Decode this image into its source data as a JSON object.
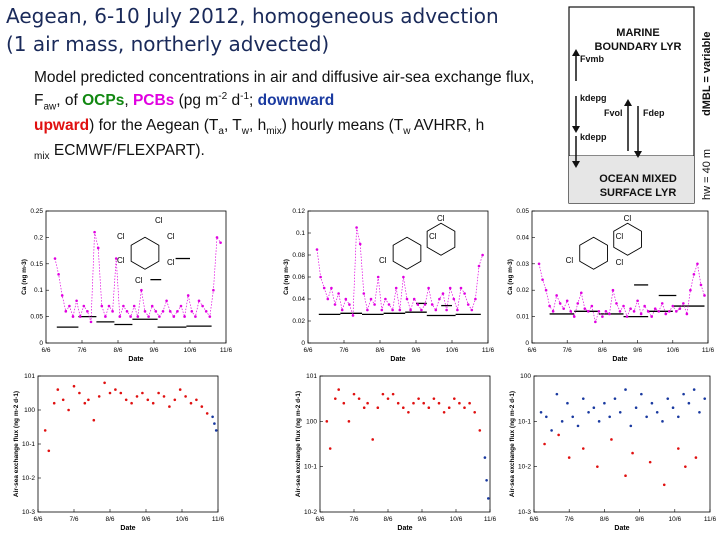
{
  "header": {
    "title_line1": "Aegean, 6-10 July 2012, homogeneous advection",
    "title_line2": "(1 air mass, northerly advected)"
  },
  "caption": {
    "part1": "Model predicted concentrations in air and diffusive air-sea exchange flux, F",
    "aw_sub": "aw",
    "part2": ", of ",
    "ocps": "OCPs",
    "comma": ", ",
    "pcbs": "PCBs",
    "part3": " (pg m",
    "sup1": "-2",
    "part4": " d",
    "sup2": "-1",
    "part5": "; ",
    "downward": "downward",
    "upward": "upward",
    "part6": ") for the Aegean (T",
    "a_sub": "a",
    "part7": ", T",
    "w_sub": "w",
    "part8": ", h",
    "mix_sub": "mix",
    "part9": ") hourly means (T",
    "w_sub2": "w",
    "part10": " AVHRR, h",
    "mix_sub2": "mix",
    "part11": " ECMWF/FLEXPART)."
  },
  "diagram": {
    "mbl_line1": "MARINE",
    "mbl_line2": "BOUNDARY LYR",
    "oml_line1": "OCEAN MIXED",
    "oml_line2": "SURFACE LYR",
    "dmbl": "dMBL = variable",
    "hw": "hw = 40 m",
    "f_vmb": "Fvmb",
    "k_depg": "kdepg",
    "f_vol": "Fvol",
    "f_dep": "Fdep",
    "k_depp": "kdepp",
    "colors": {
      "dark": "#111111"
    }
  },
  "colors": {
    "pcb": "#e000e0",
    "downward": "#1a3aa0",
    "upward": "#e01010",
    "ocp": "#118811"
  },
  "chart_data": [
    {
      "type": "scatter",
      "panel": "top-left",
      "ylabel": "Ca (ng m-3)",
      "xlabel": "Date",
      "xticks": [
        "6/6",
        "7/6",
        "8/6",
        "9/6",
        "10/6",
        "11/6"
      ],
      "yticks": [
        "0",
        "0.05",
        "0.1",
        "0.15",
        "0.2",
        "0.25"
      ],
      "ylim": [
        0,
        0.25
      ],
      "xlim": [
        0,
        5
      ],
      "molecule_labels": [
        "Cl",
        "Cl",
        "Cl",
        "Cl",
        "Cl",
        "Cl"
      ],
      "series": [
        {
          "color": "#e000e0",
          "x": [
            0.25,
            0.35,
            0.45,
            0.55,
            0.65,
            0.75,
            0.85,
            0.95,
            1.05,
            1.15,
            1.25,
            1.35,
            1.45,
            1.55,
            1.65,
            1.75,
            1.85,
            1.95,
            2.05,
            2.15,
            2.25,
            2.35,
            2.45,
            2.55,
            2.65,
            2.75,
            2.85,
            2.95,
            3.05,
            3.15,
            3.25,
            3.35,
            3.45,
            3.55,
            3.65,
            3.75,
            3.85,
            3.95,
            4.05,
            4.15,
            4.25,
            4.35,
            4.45,
            4.55,
            4.65,
            4.75,
            4.85
          ],
          "y": [
            0.16,
            0.13,
            0.09,
            0.06,
            0.07,
            0.05,
            0.08,
            0.05,
            0.07,
            0.06,
            0.04,
            0.21,
            0.18,
            0.07,
            0.05,
            0.07,
            0.06,
            0.16,
            0.05,
            0.07,
            0.06,
            0.05,
            0.07,
            0.05,
            0.1,
            0.06,
            0.05,
            0.07,
            0.06,
            0.05,
            0.06,
            0.08,
            0.06,
            0.05,
            0.06,
            0.07,
            0.05,
            0.09,
            0.06,
            0.05,
            0.08,
            0.07,
            0.06,
            0.05,
            0.1,
            0.2,
            0.19
          ]
        }
      ],
      "segments": [
        {
          "x": [
            0.3,
            0.9
          ],
          "y": 0.03
        },
        {
          "x": [
            0.9,
            1.4
          ],
          "y": 0.05
        },
        {
          "x": [
            1.4,
            1.9
          ],
          "y": 0.04
        },
        {
          "x": [
            1.9,
            2.4
          ],
          "y": 0.035
        },
        {
          "x": [
            2.4,
            3.1
          ],
          "y": 0.045
        },
        {
          "x": [
            3.1,
            3.9
          ],
          "y": 0.03
        },
        {
          "x": [
            3.9,
            4.6
          ],
          "y": 0.032
        },
        {
          "x": [
            3.6,
            4.0
          ],
          "y": 0.16
        },
        {
          "x": [
            2.9,
            3.2
          ],
          "y": 0.12
        }
      ]
    },
    {
      "type": "scatter",
      "panel": "top-middle",
      "ylabel": "Ca (ng m-3)",
      "xlabel": "Date",
      "xticks": [
        "6/6",
        "7/6",
        "8/6",
        "9/6",
        "10/6",
        "11/6"
      ],
      "yticks": [
        "0",
        "0.02",
        "0.04",
        "0.06",
        "0.08",
        "0.1",
        "0.12"
      ],
      "ylim": [
        0,
        0.12
      ],
      "xlim": [
        0,
        5
      ],
      "molecule_labels": [
        "Cl",
        "Cl",
        "Cl"
      ],
      "series": [
        {
          "color": "#e000e0",
          "x": [
            0.25,
            0.35,
            0.45,
            0.55,
            0.65,
            0.75,
            0.85,
            0.95,
            1.05,
            1.15,
            1.25,
            1.35,
            1.45,
            1.55,
            1.65,
            1.75,
            1.85,
            1.95,
            2.05,
            2.15,
            2.25,
            2.35,
            2.45,
            2.55,
            2.65,
            2.75,
            2.85,
            2.95,
            3.05,
            3.15,
            3.25,
            3.35,
            3.45,
            3.55,
            3.65,
            3.75,
            3.85,
            3.95,
            4.05,
            4.15,
            4.25,
            4.35,
            4.45,
            4.55,
            4.65,
            4.75,
            4.85
          ],
          "y": [
            0.085,
            0.06,
            0.05,
            0.04,
            0.05,
            0.035,
            0.045,
            0.03,
            0.04,
            0.035,
            0.025,
            0.105,
            0.09,
            0.045,
            0.03,
            0.04,
            0.035,
            0.06,
            0.03,
            0.04,
            0.035,
            0.03,
            0.05,
            0.03,
            0.06,
            0.04,
            0.03,
            0.04,
            0.035,
            0.03,
            0.035,
            0.05,
            0.035,
            0.03,
            0.04,
            0.045,
            0.03,
            0.05,
            0.04,
            0.03,
            0.05,
            0.045,
            0.035,
            0.03,
            0.04,
            0.07,
            0.08
          ]
        }
      ],
      "segments": [
        {
          "x": [
            0.3,
            0.9
          ],
          "y": 0.026
        },
        {
          "x": [
            0.9,
            1.5
          ],
          "y": 0.027
        },
        {
          "x": [
            1.5,
            2.1
          ],
          "y": 0.026
        },
        {
          "x": [
            2.1,
            2.7
          ],
          "y": 0.027
        },
        {
          "x": [
            2.7,
            3.3
          ],
          "y": 0.028
        },
        {
          "x": [
            3.3,
            4.1
          ],
          "y": 0.025
        },
        {
          "x": [
            4.1,
            4.8
          ],
          "y": 0.026
        },
        {
          "x": [
            3.7,
            4.0
          ],
          "y": 0.034
        },
        {
          "x": [
            3.0,
            3.3
          ],
          "y": 0.036
        }
      ]
    },
    {
      "type": "scatter",
      "panel": "top-right",
      "ylabel": "Ca (ng m-3)",
      "xlabel": "Date",
      "xticks": [
        "6/6",
        "7/6",
        "8/6",
        "9/6",
        "10/6",
        "11/6"
      ],
      "yticks": [
        "0",
        "0.01",
        "0.02",
        "0.03",
        "0.04",
        "0.05"
      ],
      "ylim": [
        0,
        0.05
      ],
      "xlim": [
        0,
        5
      ],
      "molecule_labels": [
        "Cl",
        "Cl",
        "Cl",
        "Cl"
      ],
      "series": [
        {
          "color": "#e000e0",
          "x": [
            0.2,
            0.3,
            0.4,
            0.5,
            0.6,
            0.7,
            0.8,
            0.9,
            1.0,
            1.1,
            1.2,
            1.3,
            1.4,
            1.5,
            1.6,
            1.7,
            1.8,
            1.9,
            2.0,
            2.1,
            2.2,
            2.3,
            2.4,
            2.5,
            2.6,
            2.7,
            2.8,
            2.9,
            3.0,
            3.1,
            3.2,
            3.3,
            3.4,
            3.5,
            3.6,
            3.7,
            3.8,
            3.9,
            4.0,
            4.1,
            4.2,
            4.3,
            4.4,
            4.5,
            4.6,
            4.7,
            4.8,
            4.9
          ],
          "y": [
            0.03,
            0.024,
            0.02,
            0.014,
            0.012,
            0.018,
            0.015,
            0.013,
            0.016,
            0.012,
            0.01,
            0.015,
            0.019,
            0.013,
            0.012,
            0.014,
            0.008,
            0.012,
            0.01,
            0.012,
            0.011,
            0.02,
            0.015,
            0.012,
            0.014,
            0.01,
            0.013,
            0.012,
            0.016,
            0.011,
            0.014,
            0.012,
            0.01,
            0.013,
            0.012,
            0.015,
            0.011,
            0.012,
            0.014,
            0.012,
            0.013,
            0.015,
            0.011,
            0.02,
            0.026,
            0.03,
            0.022,
            0.018
          ]
        }
      ],
      "segments": [
        {
          "x": [
            0.5,
            1.2
          ],
          "y": 0.011
        },
        {
          "x": [
            1.2,
            1.9
          ],
          "y": 0.012
        },
        {
          "x": [
            1.9,
            2.6
          ],
          "y": 0.011
        },
        {
          "x": [
            2.6,
            3.3
          ],
          "y": 0.01
        },
        {
          "x": [
            3.3,
            4.0
          ],
          "y": 0.012
        },
        {
          "x": [
            4.0,
            4.9
          ],
          "y": 0.014
        },
        {
          "x": [
            2.9,
            3.3
          ],
          "y": 0.022
        },
        {
          "x": [
            3.6,
            4.1
          ],
          "y": 0.018
        }
      ]
    },
    {
      "type": "scatter",
      "panel": "bottom-left",
      "ylabel": "Air-sea exchange flux (ng m-2 d-1)",
      "xlabel": "Date",
      "xticks": [
        "6/6",
        "7/6",
        "8/6",
        "9/6",
        "10/6",
        "11/6"
      ],
      "yticks": [
        "10-3",
        "10-2",
        "10-1",
        "100",
        "101"
      ],
      "ylim": [
        -3,
        1
      ],
      "xlim": [
        0,
        5
      ],
      "series": [
        {
          "name": "upward",
          "color": "#e01010",
          "x": [
            0.2,
            0.3,
            0.45,
            0.55,
            0.7,
            0.85,
            1.0,
            1.15,
            1.3,
            1.4,
            1.55,
            1.7,
            1.85,
            2.0,
            2.15,
            2.3,
            2.45,
            2.6,
            2.75,
            2.9,
            3.05,
            3.2,
            3.35,
            3.5,
            3.65,
            3.8,
            3.95,
            4.1,
            4.25,
            4.4,
            4.55,
            4.7
          ],
          "y": [
            -0.6,
            -1.2,
            0.2,
            0.6,
            0.3,
            0.0,
            0.7,
            0.5,
            0.2,
            0.3,
            -0.3,
            0.4,
            0.8,
            0.5,
            0.6,
            0.5,
            0.3,
            0.2,
            0.4,
            0.5,
            0.3,
            0.2,
            0.5,
            0.4,
            0.1,
            0.3,
            0.6,
            0.4,
            0.2,
            0.3,
            0.1,
            -0.1
          ]
        },
        {
          "name": "downward",
          "color": "#1a3aa0",
          "x": [
            4.85,
            4.9,
            4.95
          ],
          "y": [
            -0.2,
            -0.4,
            -0.6
          ]
        }
      ]
    },
    {
      "type": "scatter",
      "panel": "bottom-middle",
      "ylabel": "Air-sea exchange flux (ng m-2 d-1)",
      "xlabel": "Date",
      "xticks": [
        "6/6",
        "7/6",
        "8/6",
        "9/6",
        "10/6",
        "11/6"
      ],
      "yticks": [
        "10-2",
        "10-1",
        "100",
        "101"
      ],
      "ylim": [
        -2,
        1
      ],
      "xlim": [
        0,
        5
      ],
      "series": [
        {
          "name": "upward",
          "color": "#e01010",
          "x": [
            0.2,
            0.3,
            0.45,
            0.55,
            0.7,
            0.85,
            1.0,
            1.15,
            1.3,
            1.4,
            1.55,
            1.7,
            1.85,
            2.0,
            2.15,
            2.3,
            2.45,
            2.6,
            2.75,
            2.9,
            3.05,
            3.2,
            3.35,
            3.5,
            3.65,
            3.8,
            3.95,
            4.1,
            4.25,
            4.4,
            4.55,
            4.7
          ],
          "y": [
            0.0,
            -0.6,
            0.5,
            0.7,
            0.4,
            0.0,
            0.6,
            0.5,
            0.3,
            0.4,
            -0.4,
            0.3,
            0.6,
            0.5,
            0.6,
            0.4,
            0.3,
            0.2,
            0.4,
            0.5,
            0.4,
            0.3,
            0.5,
            0.4,
            0.2,
            0.3,
            0.5,
            0.4,
            0.3,
            0.4,
            0.2,
            -0.2
          ]
        },
        {
          "name": "downward",
          "color": "#1a3aa0",
          "x": [
            4.85,
            4.9,
            4.95
          ],
          "y": [
            -0.8,
            -1.3,
            -1.7
          ]
        }
      ]
    },
    {
      "type": "scatter",
      "panel": "bottom-right",
      "ylabel": "Air-sea exchange flux (ng m-2 d-1)",
      "xlabel": "Date",
      "xticks": [
        "6/6",
        "7/6",
        "8/6",
        "9/6",
        "10/6",
        "11/6"
      ],
      "yticks": [
        "10-3",
        "10-2",
        "10-1",
        "100"
      ],
      "ylim": [
        -3,
        0
      ],
      "xlim": [
        0,
        5
      ],
      "series": [
        {
          "name": "downward",
          "color": "#1a3aa0",
          "x": [
            0.2,
            0.35,
            0.5,
            0.65,
            0.8,
            0.95,
            1.1,
            1.25,
            1.4,
            1.55,
            1.7,
            1.85,
            2.0,
            2.15,
            2.3,
            2.45,
            2.6,
            2.75,
            2.9,
            3.05,
            3.2,
            3.35,
            3.5,
            3.65,
            3.8,
            3.95,
            4.1,
            4.25,
            4.4,
            4.55,
            4.7,
            4.85
          ],
          "y": [
            -0.8,
            -0.9,
            -1.2,
            -0.4,
            -1.0,
            -0.6,
            -0.9,
            -1.1,
            -0.5,
            -0.8,
            -0.7,
            -1.0,
            -0.6,
            -0.9,
            -0.5,
            -0.8,
            -0.3,
            -1.1,
            -0.7,
            -0.4,
            -0.9,
            -0.6,
            -0.8,
            -1.0,
            -0.5,
            -0.7,
            -0.9,
            -0.4,
            -0.6,
            -0.3,
            -0.8,
            -0.5
          ]
        },
        {
          "name": "upward",
          "color": "#e01010",
          "x": [
            0.3,
            0.7,
            1.0,
            1.4,
            1.8,
            2.2,
            2.6,
            2.8,
            3.3,
            3.7,
            4.1,
            4.3,
            4.6
          ],
          "y": [
            -1.5,
            -1.3,
            -1.8,
            -1.6,
            -2.0,
            -1.4,
            -2.2,
            -1.7,
            -1.9,
            -2.4,
            -1.6,
            -2.0,
            -1.8
          ]
        }
      ]
    }
  ]
}
